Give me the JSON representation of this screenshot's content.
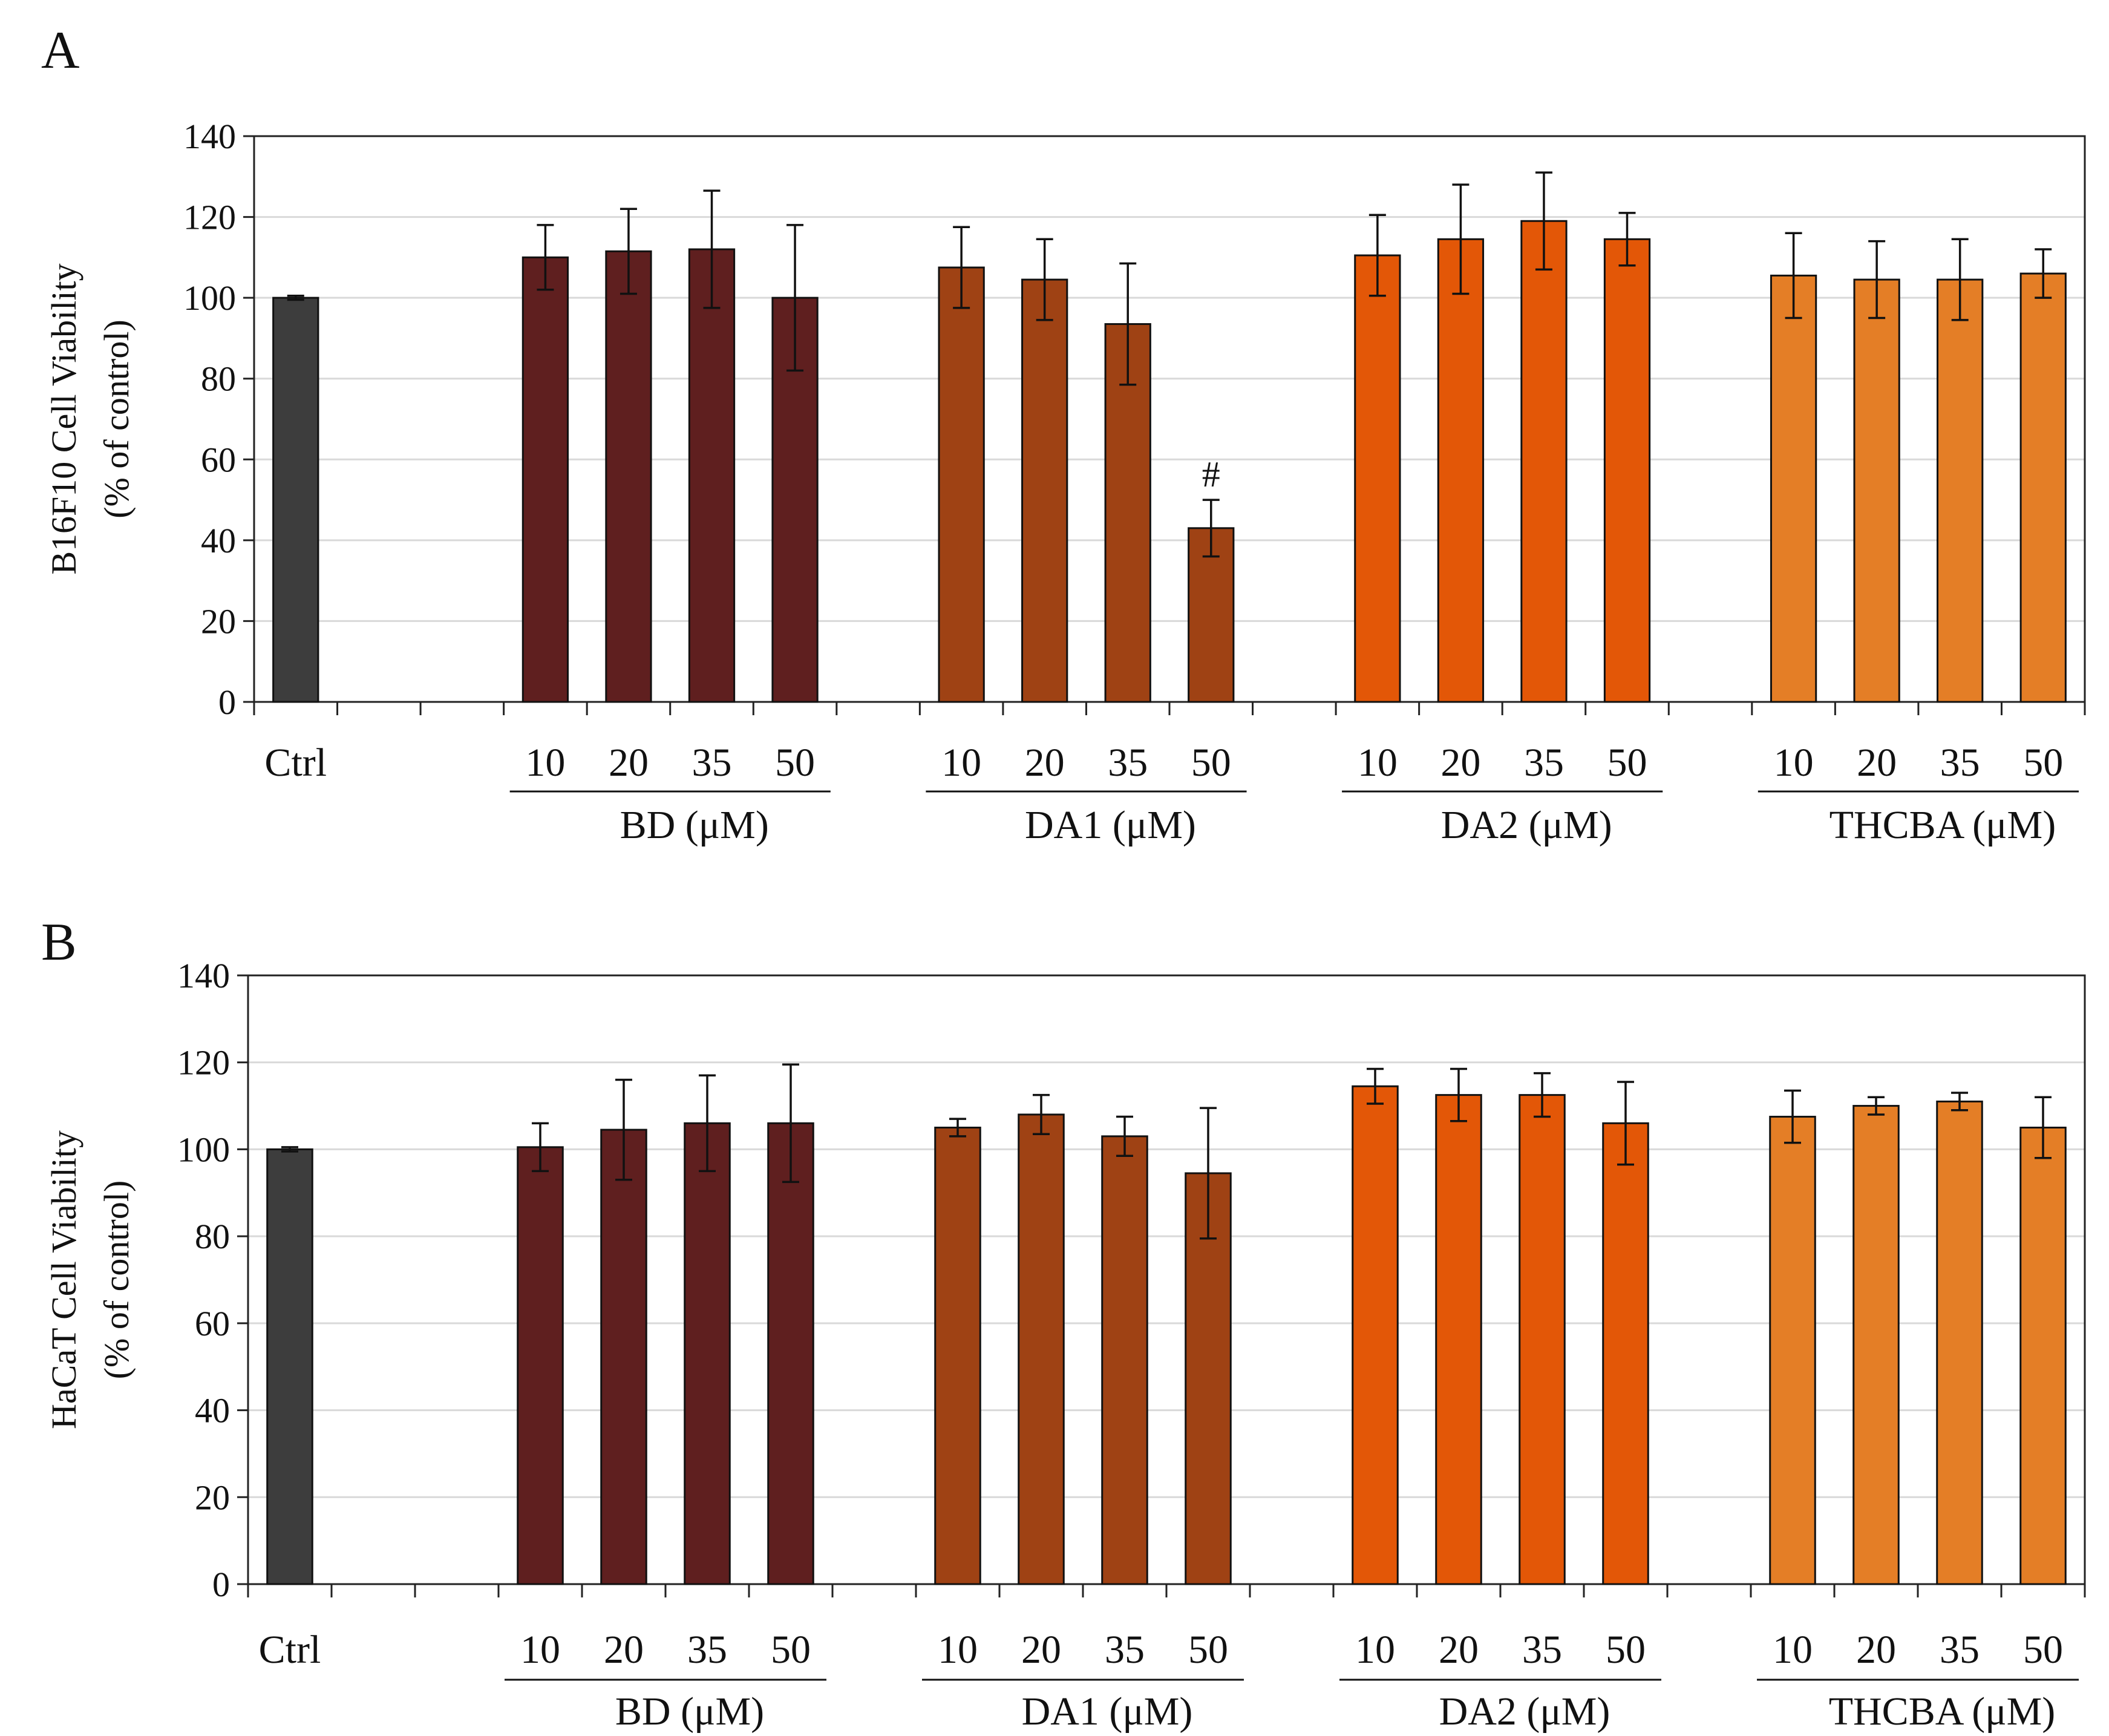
{
  "colors": {
    "Ctrl": "#3d3d3d",
    "BD": "#5f1f1f",
    "DA1": "#9f4214",
    "DA2": "#e35707",
    "THCBA": "#e47e26"
  },
  "chart_data": [
    {
      "type": "bar",
      "panel": "A",
      "ylabel": "B16F10 Cell Viability",
      "ylabel2": "(% of control)",
      "ylim": [
        0,
        140
      ],
      "yticks": [
        "0",
        "20",
        "40",
        "60",
        "80",
        "100",
        "120",
        "140"
      ],
      "grid": true,
      "ctrl": {
        "label": "Ctrl",
        "value": 100,
        "error": 0.5
      },
      "concentrations": [
        "10",
        "20",
        "35",
        "50"
      ],
      "groups": [
        {
          "name": "BD",
          "label": "BD (μM)",
          "values": [
            110,
            111.5,
            112,
            100
          ],
          "errors": [
            8,
            10.5,
            14.5,
            18
          ]
        },
        {
          "name": "DA1",
          "label": "DA1 (μM)",
          "values": [
            107.5,
            104.5,
            93.5,
            43
          ],
          "errors": [
            10,
            10,
            15,
            7
          ],
          "annotations": [
            null,
            null,
            null,
            "#"
          ]
        },
        {
          "name": "DA2",
          "label": "DA2 (μM)",
          "values": [
            110.5,
            114.5,
            119,
            114.5
          ],
          "errors": [
            10,
            13.5,
            12,
            6.5
          ]
        },
        {
          "name": "THCBA",
          "label": "THCBA (μM)",
          "values": [
            105.5,
            104.5,
            104.5,
            106
          ],
          "errors": [
            10.5,
            9.5,
            10,
            6
          ]
        }
      ]
    },
    {
      "type": "bar",
      "panel": "B",
      "ylabel": "HaCaT Cell Viability",
      "ylabel2": "(% of control)",
      "ylim": [
        0,
        140
      ],
      "yticks": [
        "0",
        "20",
        "40",
        "60",
        "80",
        "100",
        "120",
        "140"
      ],
      "grid": true,
      "ctrl": {
        "label": "Ctrl",
        "value": 100,
        "error": 0.5
      },
      "concentrations": [
        "10",
        "20",
        "35",
        "50"
      ],
      "groups": [
        {
          "name": "BD",
          "label": "BD (μM)",
          "values": [
            100.5,
            104.5,
            106,
            106
          ],
          "errors": [
            5.5,
            11.5,
            11,
            13.5
          ]
        },
        {
          "name": "DA1",
          "label": "DA1 (μM)",
          "values": [
            105,
            108,
            103,
            94.5
          ],
          "errors": [
            2,
            4.5,
            4.5,
            15
          ]
        },
        {
          "name": "DA2",
          "label": "DA2 (μM)",
          "values": [
            114.5,
            112.5,
            112.5,
            106
          ],
          "errors": [
            4,
            6,
            5,
            9.5
          ]
        },
        {
          "name": "THCBA",
          "label": "THCBA (μM)",
          "values": [
            107.5,
            110,
            111,
            105
          ],
          "errors": [
            6,
            2,
            2,
            7
          ]
        }
      ]
    }
  ]
}
